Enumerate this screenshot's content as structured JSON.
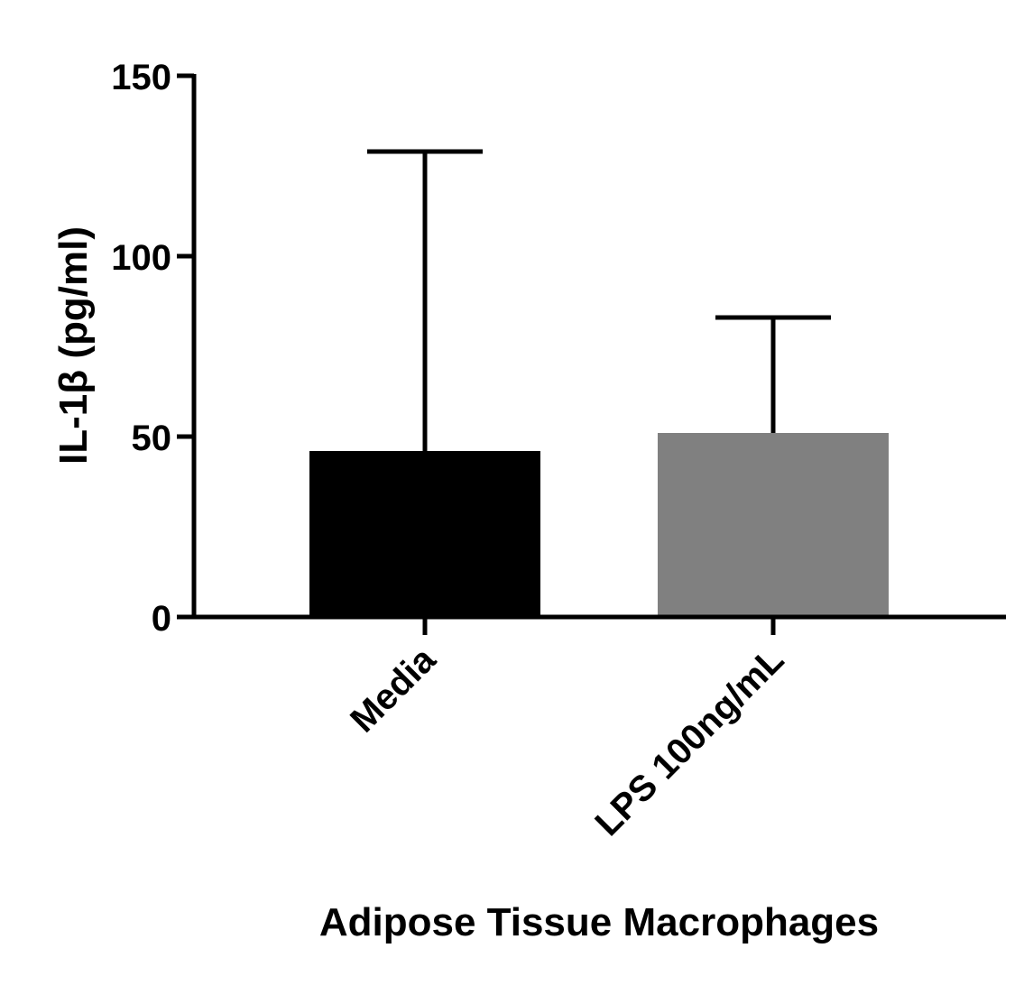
{
  "chart_data": {
    "type": "bar",
    "title": "",
    "xlabel": "Adipose Tissue Macrophages",
    "ylabel": "IL-1β (pg/ml)",
    "ylim": [
      0,
      150
    ],
    "yticks": [
      0,
      50,
      100,
      150
    ],
    "grid": false,
    "categories": [
      "Media",
      "LPS 100ng/mL"
    ],
    "values": [
      46,
      51
    ],
    "error_upper": [
      83,
      32
    ],
    "colors": [
      "#000000",
      "#808080"
    ]
  }
}
